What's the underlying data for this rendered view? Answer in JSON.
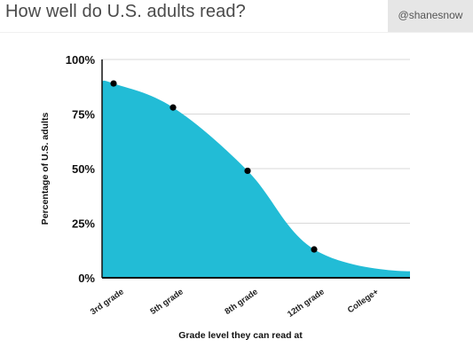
{
  "header": {
    "title": "How well do U.S. adults read?",
    "handle": "@shanesnow"
  },
  "chart_data": {
    "type": "area",
    "title": "How well do U.S. adults read?",
    "xlabel": "Grade level they can read at",
    "ylabel": "Percentage of U.S. adults",
    "categories": [
      "3rd grade",
      "5th grade",
      "8th grade",
      "12th grade",
      "College+"
    ],
    "yticks": [
      "0%",
      "25%",
      "50%",
      "75%",
      "100%"
    ],
    "ylim": [
      0,
      100
    ],
    "grid": true,
    "colors": {
      "area": "#22bcd6",
      "point": "#000000",
      "grid": "#d8d8d8",
      "axis": "#111111"
    },
    "series": [
      {
        "points": [
          {
            "x": "3rd grade",
            "y": 89
          },
          {
            "x": "5th grade",
            "y": 78
          },
          {
            "x": "8th grade",
            "y": 49
          },
          {
            "x": "12th grade",
            "y": 13
          }
        ],
        "curve_end": 3
      }
    ]
  }
}
